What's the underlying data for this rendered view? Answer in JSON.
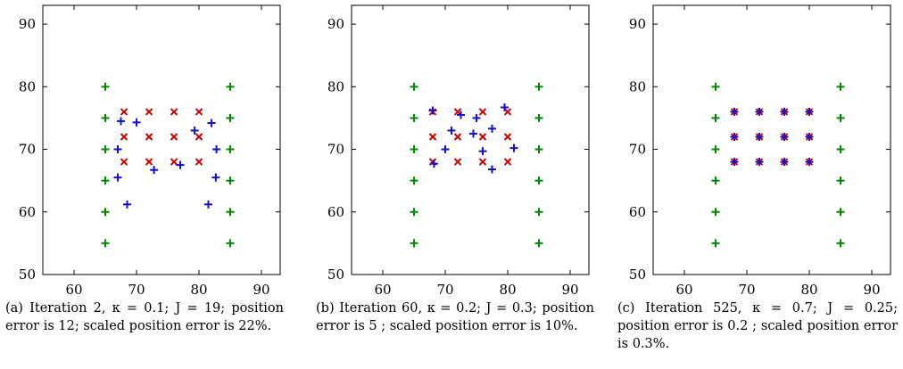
{
  "chart_data": [
    {
      "type": "scatter",
      "xlim": [
        55,
        93
      ],
      "ylim": [
        50,
        93
      ],
      "xticks": [
        60,
        70,
        80,
        90
      ],
      "yticks": [
        50,
        60,
        70,
        80,
        90
      ],
      "grid": false,
      "caption": "(a) Iteration 2, κ = 0.1; J = 19; position error is 12; scaled position error is 22%.",
      "series": [
        {
          "marker": "x",
          "color": "#cc0000",
          "points": [
            [
              68,
              76
            ],
            [
              72,
              76
            ],
            [
              76,
              76
            ],
            [
              80,
              76
            ],
            [
              68,
              72
            ],
            [
              72,
              72
            ],
            [
              76,
              72
            ],
            [
              80,
              72
            ],
            [
              68,
              68
            ],
            [
              72,
              68
            ],
            [
              76,
              68
            ],
            [
              80,
              68
            ]
          ]
        },
        {
          "marker": "+",
          "color": "#1010cc",
          "points": [
            [
              67.5,
              74.5
            ],
            [
              70,
              74.3
            ],
            [
              67,
              70
            ],
            [
              67,
              65.5
            ],
            [
              68.5,
              61.2
            ],
            [
              72.8,
              66.7
            ],
            [
              77,
              67.5
            ],
            [
              79.3,
              73
            ],
            [
              82,
              74.2
            ],
            [
              82.8,
              70
            ],
            [
              82.7,
              65.5
            ],
            [
              81.5,
              61.2
            ]
          ]
        },
        {
          "marker": "+",
          "color": "#008800",
          "points": [
            [
              65,
              80
            ],
            [
              65,
              75
            ],
            [
              65,
              70
            ],
            [
              65,
              65
            ],
            [
              65,
              60
            ],
            [
              65,
              55
            ],
            [
              85,
              80
            ],
            [
              85,
              75
            ],
            [
              85,
              70
            ],
            [
              85,
              65
            ],
            [
              85,
              60
            ],
            [
              85,
              55
            ]
          ]
        }
      ]
    },
    {
      "type": "scatter",
      "xlim": [
        55,
        93
      ],
      "ylim": [
        50,
        93
      ],
      "xticks": [
        60,
        70,
        80,
        90
      ],
      "yticks": [
        50,
        60,
        70,
        80,
        90
      ],
      "grid": false,
      "caption": "(b) Iteration 60, κ = 0.2; J = 0.3; position error is 5 ; scaled position error is 10%.",
      "series": [
        {
          "marker": "x",
          "color": "#cc0000",
          "points": [
            [
              68,
              76
            ],
            [
              72,
              76
            ],
            [
              76,
              76
            ],
            [
              80,
              76
            ],
            [
              68,
              72
            ],
            [
              72,
              72
            ],
            [
              76,
              72
            ],
            [
              80,
              72
            ],
            [
              68,
              68
            ],
            [
              72,
              68
            ],
            [
              76,
              68
            ],
            [
              80,
              68
            ]
          ]
        },
        {
          "marker": "+",
          "color": "#1010cc",
          "points": [
            [
              68,
              76.2
            ],
            [
              72.5,
              75.5
            ],
            [
              75,
              75
            ],
            [
              79.5,
              76.7
            ],
            [
              71,
              73
            ],
            [
              74.5,
              72.5
            ],
            [
              77.5,
              73.3
            ],
            [
              70,
              70
            ],
            [
              76,
              69.7
            ],
            [
              81,
              70.2
            ],
            [
              68.2,
              67.7
            ],
            [
              77.5,
              66.8
            ]
          ]
        },
        {
          "marker": "+",
          "color": "#008800",
          "points": [
            [
              65,
              80
            ],
            [
              65,
              75
            ],
            [
              65,
              70
            ],
            [
              65,
              65
            ],
            [
              65,
              60
            ],
            [
              65,
              55
            ],
            [
              85,
              80
            ],
            [
              85,
              75
            ],
            [
              85,
              70
            ],
            [
              85,
              65
            ],
            [
              85,
              60
            ],
            [
              85,
              55
            ]
          ]
        }
      ]
    },
    {
      "type": "scatter",
      "xlim": [
        55,
        93
      ],
      "ylim": [
        50,
        93
      ],
      "xticks": [
        60,
        70,
        80,
        90
      ],
      "yticks": [
        50,
        60,
        70,
        80,
        90
      ],
      "grid": false,
      "caption": "(c) Iteration 525, κ = 0.7; J = 0.25; position error is 0.2 ; scaled position error is 0.3%.",
      "series": [
        {
          "marker": "x",
          "color": "#cc0000",
          "points": [
            [
              68,
              76
            ],
            [
              72,
              76
            ],
            [
              76,
              76
            ],
            [
              80,
              76
            ],
            [
              68,
              72
            ],
            [
              72,
              72
            ],
            [
              76,
              72
            ],
            [
              80,
              72
            ],
            [
              68,
              68
            ],
            [
              72,
              68
            ],
            [
              76,
              68
            ],
            [
              80,
              68
            ]
          ]
        },
        {
          "marker": "+",
          "color": "#1010cc",
          "points": [
            [
              68,
              76
            ],
            [
              72,
              76
            ],
            [
              76,
              76
            ],
            [
              80,
              76
            ],
            [
              68,
              72
            ],
            [
              72,
              72
            ],
            [
              76,
              72
            ],
            [
              80,
              72
            ],
            [
              68,
              68
            ],
            [
              72,
              68
            ],
            [
              76,
              68
            ],
            [
              80,
              68
            ]
          ]
        },
        {
          "marker": "+",
          "color": "#008800",
          "points": [
            [
              65,
              80
            ],
            [
              65,
              75
            ],
            [
              65,
              70
            ],
            [
              65,
              65
            ],
            [
              65,
              60
            ],
            [
              65,
              55
            ],
            [
              85,
              80
            ],
            [
              85,
              75
            ],
            [
              85,
              70
            ],
            [
              85,
              65
            ],
            [
              85,
              60
            ],
            [
              85,
              55
            ]
          ]
        }
      ]
    }
  ]
}
